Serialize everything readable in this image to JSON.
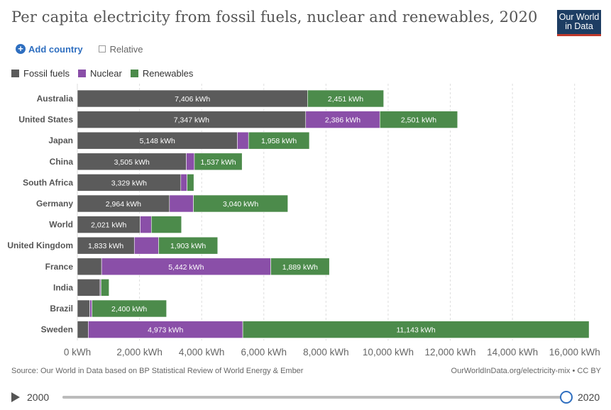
{
  "title": "Per capita electricity from fossil fuels, nuclear and renewables, 2020",
  "logo": {
    "line1": "Our World",
    "line2": "in Data"
  },
  "controls": {
    "add_country": "Add country",
    "relative": "Relative"
  },
  "chart_data": {
    "type": "bar",
    "orientation": "horizontal",
    "stacked": true,
    "unit": "kWh",
    "categories": [
      "Australia",
      "United States",
      "Japan",
      "China",
      "South Africa",
      "Germany",
      "World",
      "United Kingdom",
      "France",
      "India",
      "Brazil",
      "Sweden"
    ],
    "series": [
      {
        "name": "Fossil fuels",
        "color": "#5b5b5b",
        "values": [
          7406,
          7347,
          5148,
          3505,
          3329,
          2964,
          2021,
          1833,
          780,
          730,
          400,
          350
        ],
        "labels": [
          "7,406 kWh",
          "7,347 kWh",
          "5,148 kWh",
          "3,505 kWh",
          "3,329 kWh",
          "2,964 kWh",
          "2,021 kWh",
          "1,833 kWh",
          "",
          "",
          "",
          ""
        ]
      },
      {
        "name": "Nuclear",
        "color": "#8a4fa8",
        "values": [
          0,
          2386,
          360,
          260,
          200,
          770,
          360,
          780,
          5442,
          30,
          70,
          4973
        ],
        "labels": [
          "",
          "2,386 kWh",
          "",
          "",
          "",
          "",
          "",
          "",
          "5,442 kWh",
          "",
          "",
          "4,973 kWh"
        ]
      },
      {
        "name": "Renewables",
        "color": "#4c8b4b",
        "values": [
          2451,
          2501,
          1958,
          1537,
          220,
          3040,
          970,
          1903,
          1889,
          260,
          2400,
          11143
        ],
        "labels": [
          "2,451 kWh",
          "2,501 kWh",
          "1,958 kWh",
          "1,537 kWh",
          "",
          "3,040 kWh",
          "",
          "1,903 kWh",
          "1,889 kWh",
          "",
          "2,400 kWh",
          "11,143 kWh"
        ]
      }
    ],
    "xlim": [
      0,
      16600
    ],
    "xticks": [
      0,
      2000,
      4000,
      6000,
      8000,
      10000,
      12000,
      14000,
      16000
    ],
    "xtick_labels": [
      "0 kWh",
      "2,000 kWh",
      "4,000 kWh",
      "6,000 kWh",
      "8,000 kWh",
      "10,000 kWh",
      "12,000 kWh",
      "14,000 kWh",
      "16,000 kWh"
    ],
    "grid": true,
    "legend_position": "top-left"
  },
  "footer": {
    "source": "Source: Our World in Data based on BP Statistical Review of World Energy & Ember",
    "url": "OurWorldInData.org/electricity-mix • CC BY"
  },
  "timeline": {
    "start": "2000",
    "end": "2020",
    "progress": 1.0
  }
}
